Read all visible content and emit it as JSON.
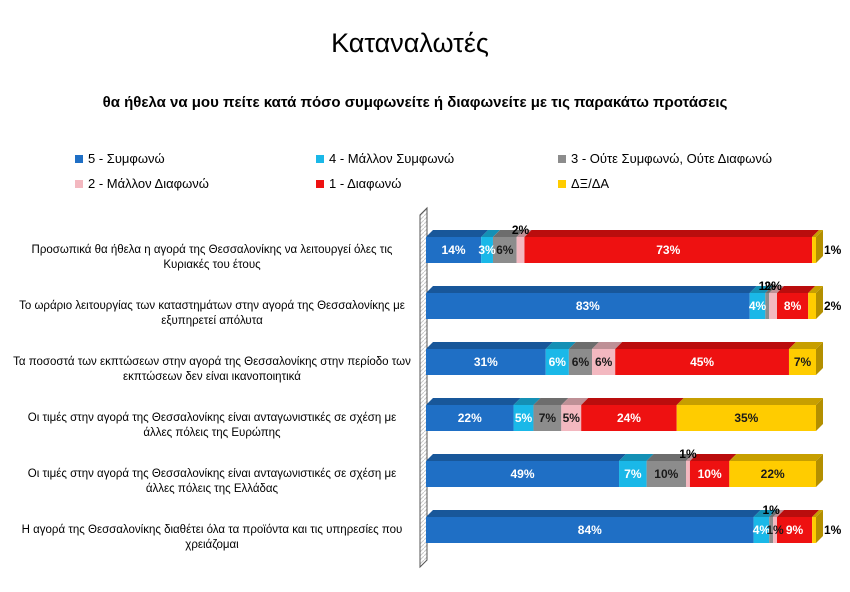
{
  "title": "Καταναλωτές",
  "subtitle": "θα ήθελα να μου πείτε κατά πόσο συμφωνείτε ή διαφωνείτε με τις παρακάτω προτάσεις",
  "legend": [
    {
      "label": "5 - Συμφωνώ",
      "color": "#1f6fc5"
    },
    {
      "label": "4 - Μάλλον Συμφωνώ",
      "color": "#1ab8e8"
    },
    {
      "label": "3 - Ούτε Συμφωνώ, Ούτε Διαφωνώ",
      "color": "#8c8c8c"
    },
    {
      "label": "2 - Μάλλον Διαφωνώ",
      "color": "#f3b8c0"
    },
    {
      "label": "1 - Διαφωνώ",
      "color": "#ee1111"
    },
    {
      "label": "ΔΞ/ΔΑ",
      "color": "#ffcc00"
    }
  ],
  "chart_data": {
    "type": "bar",
    "orientation": "horizontal",
    "stacked": true,
    "title": "Καταναλωτές",
    "subtitle": "θα ήθελα να μου πείτε κατά πόσο συμφωνείτε ή διαφωνείτε με τις παρακάτω προτάσεις",
    "categories": [
      "Προσωπικά θα ήθελα η αγορά της Θεσσαλονίκης να λειτουργεί όλες τις Κυριακές του έτους",
      "Το ωράριο λειτουργίας των καταστημάτων στην αγορά της Θεσσαλονίκης με εξυπηρετεί απόλυτα",
      "Τα ποσοστά των εκπτώσεων στην αγορά της Θεσσαλονίκης στην περίοδο των εκπτώσεων δεν είναι ικανοποιητικά",
      "Οι τιμές στην αγορά της Θεσσαλονίκης είναι ανταγωνιστικές σε σχέση με άλλες πόλεις της Ευρώπης",
      "Οι τιμές στην αγορά της Θεσσαλονίκης είναι ανταγωνιστικές σε σχέση με άλλες πόλεις της Ελλάδας",
      "Η αγορά της Θεσσαλονίκης διαθέτει όλα τα προϊόντα και τις υπηρεσίες που χρειάζομαι"
    ],
    "series": [
      {
        "name": "5 - Συμφωνώ",
        "values": [
          14,
          83,
          31,
          22,
          49,
          84
        ]
      },
      {
        "name": "4 - Μάλλον Συμφωνώ",
        "values": [
          3,
          4,
          6,
          5,
          7,
          4
        ]
      },
      {
        "name": "3 - Ούτε Συμφωνώ, Ούτε Διαφωνώ",
        "values": [
          6,
          1,
          6,
          7,
          10,
          1
        ]
      },
      {
        "name": "2 - Μάλλον Διαφωνώ",
        "values": [
          2,
          2,
          6,
          5,
          1,
          1
        ]
      },
      {
        "name": "1 - Διαφωνώ",
        "values": [
          73,
          8,
          45,
          24,
          10,
          9
        ]
      },
      {
        "name": "ΔΞ/ΔΑ",
        "values": [
          1,
          2,
          7,
          35,
          22,
          1
        ]
      }
    ],
    "value_suffix": "%",
    "xlim": [
      0,
      100
    ],
    "legend_position": "top"
  }
}
